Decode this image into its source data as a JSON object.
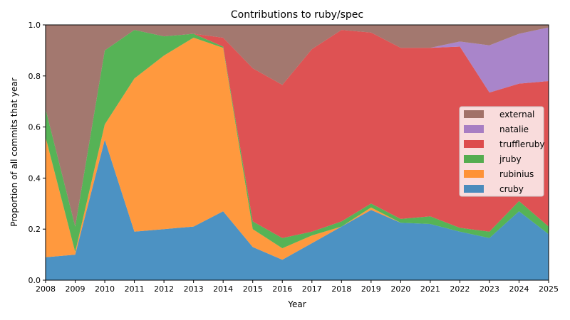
{
  "chart_data": {
    "type": "area",
    "title": "Contributions to ruby/spec",
    "xlabel": "Year",
    "ylabel": "Proportion of all commits that year",
    "xlim": [
      2008,
      2025
    ],
    "ylim": [
      0,
      1
    ],
    "x": [
      2008,
      2009,
      2010,
      2011,
      2012,
      2013,
      2014,
      2015,
      2016,
      2017,
      2018,
      2019,
      2020,
      2021,
      2022,
      2023,
      2024,
      2025
    ],
    "x_ticks": [
      "2008",
      "2009",
      "2010",
      "2011",
      "2012",
      "2013",
      "2014",
      "2015",
      "2016",
      "2017",
      "2018",
      "2019",
      "2020",
      "2021",
      "2022",
      "2023",
      "2024",
      "2025"
    ],
    "y_ticks": [
      "0.0",
      "0.2",
      "0.4",
      "0.6",
      "0.8",
      "1.0"
    ],
    "y_tick_values": [
      0,
      0.2,
      0.4,
      0.6,
      0.8,
      1.0
    ],
    "legend_position": "center-right",
    "stacked": true,
    "series": [
      {
        "name": "cruby",
        "color": "#1f77b4",
        "values": [
          0.09,
          0.1,
          0.55,
          0.19,
          0.2,
          0.21,
          0.27,
          0.13,
          0.08,
          0.145,
          0.21,
          0.275,
          0.225,
          0.22,
          0.19,
          0.165,
          0.27,
          0.18
        ]
      },
      {
        "name": "rubinius",
        "color": "#ff7f0e",
        "values": [
          0.47,
          0.01,
          0.06,
          0.6,
          0.68,
          0.74,
          0.64,
          0.07,
          0.045,
          0.03,
          0.0,
          0.01,
          0.0,
          0.0,
          0.0,
          0.0,
          0.0,
          0.0
        ]
      },
      {
        "name": "jruby",
        "color": "#2ca02c",
        "values": [
          0.11,
          0.1,
          0.29,
          0.19,
          0.075,
          0.015,
          0.005,
          0.03,
          0.04,
          0.015,
          0.02,
          0.015,
          0.015,
          0.03,
          0.015,
          0.025,
          0.04,
          0.03
        ]
      },
      {
        "name": "truffleruby",
        "color": "#d62728",
        "values": [
          0.0,
          0.0,
          0.0,
          0.0,
          0.0,
          0.0,
          0.035,
          0.6,
          0.6,
          0.715,
          0.75,
          0.67,
          0.67,
          0.66,
          0.71,
          0.545,
          0.46,
          0.57
        ]
      },
      {
        "name": "natalie",
        "color": "#9467bd",
        "values": [
          0.0,
          0.0,
          0.0,
          0.0,
          0.0,
          0.0,
          0.0,
          0.0,
          0.0,
          0.0,
          0.0,
          0.0,
          0.0,
          0.0,
          0.02,
          0.185,
          0.195,
          0.21
        ]
      },
      {
        "name": "external",
        "color": "#8c564b",
        "values": [
          0.33,
          0.79,
          0.1,
          0.02,
          0.045,
          0.035,
          0.05,
          0.17,
          0.235,
          0.095,
          0.02,
          0.03,
          0.09,
          0.09,
          0.065,
          0.08,
          0.035,
          0.01
        ]
      }
    ]
  }
}
